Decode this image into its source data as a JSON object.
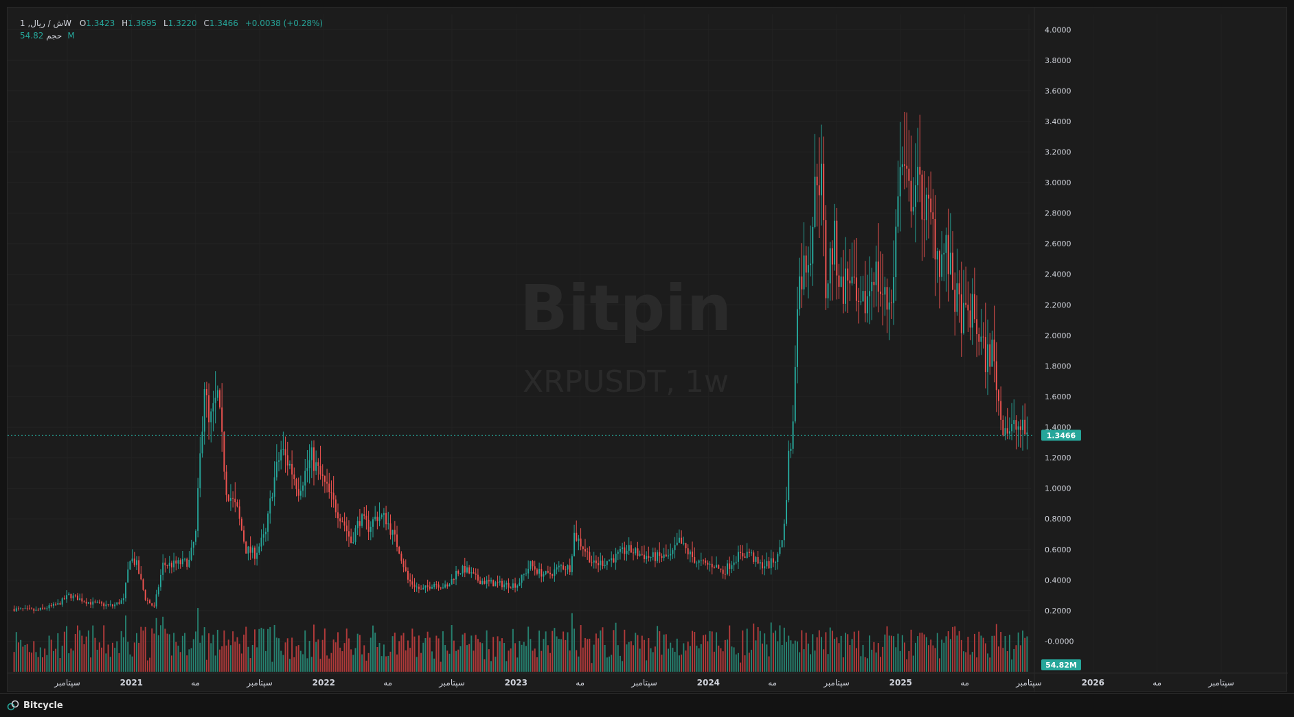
{
  "legend": {
    "symbol": "1 ,ش / ریالW",
    "open_label": "O",
    "open": "1.3423",
    "high_label": "H",
    "high": "1.3695",
    "low_label": "L",
    "low": "1.3220",
    "close_label": "C",
    "close": "1.3466",
    "change": "+0.0038 (+0.28%)",
    "volume_label": "حجم",
    "volume": "54.82M"
  },
  "watermark": {
    "brand": "Bitpin",
    "symbol": "XRPUSDT, 1w"
  },
  "footer": {
    "brand": "Bitcycle"
  },
  "colors": {
    "up": "#26a69a",
    "down": "#ef5350",
    "up_vol": "#26806f",
    "down_vol": "#b03a3a"
  },
  "chart_data": {
    "type": "candlestick",
    "interval": "1w",
    "price_axis": {
      "min": -0.2,
      "max": 4.1,
      "ticks": [
        "4.0000",
        "3.8000",
        "3.6000",
        "3.4000",
        "3.2000",
        "3.0000",
        "2.8000",
        "2.6000",
        "2.4000",
        "2.2000",
        "2.0000",
        "1.8000",
        "1.6000",
        "1.4000",
        "1.2000",
        "1.0000",
        "0.8000",
        "0.6000",
        "0.4000",
        "0.2000",
        "-0.0000"
      ]
    },
    "last_price": "1.3466",
    "last_volume": "54.82M",
    "time_axis": [
      "سپتامبر",
      "2021",
      "مه",
      "سپتامبر",
      "2022",
      "مه",
      "سپتامبر",
      "2023",
      "مه",
      "سپتامبر",
      "2024",
      "مه",
      "سپتامبر",
      "2025",
      "مه",
      "سپتامبر",
      "2026",
      "مه",
      "سپتامبر"
    ],
    "time_axis_bold": [
      "2021",
      "2022",
      "2023",
      "2024",
      "2025",
      "2026"
    ],
    "close_anchors": [
      [
        0,
        0.21
      ],
      [
        10,
        0.2
      ],
      [
        20,
        0.24
      ],
      [
        25,
        0.3
      ],
      [
        35,
        0.25
      ],
      [
        45,
        0.23
      ],
      [
        50,
        0.27
      ],
      [
        53,
        0.55
      ],
      [
        56,
        0.5
      ],
      [
        60,
        0.28
      ],
      [
        64,
        0.22
      ],
      [
        68,
        0.5
      ],
      [
        72,
        0.5
      ],
      [
        80,
        0.52
      ],
      [
        83,
        0.7
      ],
      [
        87,
        1.7
      ],
      [
        89,
        1.4
      ],
      [
        93,
        1.6
      ],
      [
        97,
        1.0
      ],
      [
        102,
        0.85
      ],
      [
        106,
        0.6
      ],
      [
        110,
        0.57
      ],
      [
        115,
        0.7
      ],
      [
        118,
        1.0
      ],
      [
        122,
        1.25
      ],
      [
        126,
        1.15
      ],
      [
        130,
        1.0
      ],
      [
        133,
        1.1
      ],
      [
        136,
        1.2
      ],
      [
        141,
        1.05
      ],
      [
        146,
        0.9
      ],
      [
        150,
        0.8
      ],
      [
        154,
        0.65
      ],
      [
        158,
        0.8
      ],
      [
        162,
        0.75
      ],
      [
        166,
        0.82
      ],
      [
        170,
        0.8
      ],
      [
        176,
        0.6
      ],
      [
        180,
        0.4
      ],
      [
        186,
        0.33
      ],
      [
        192,
        0.38
      ],
      [
        198,
        0.35
      ],
      [
        202,
        0.45
      ],
      [
        206,
        0.47
      ],
      [
        212,
        0.4
      ],
      [
        218,
        0.38
      ],
      [
        224,
        0.37
      ],
      [
        230,
        0.37
      ],
      [
        236,
        0.5
      ],
      [
        240,
        0.45
      ],
      [
        244,
        0.43
      ],
      [
        250,
        0.49
      ],
      [
        254,
        0.48
      ],
      [
        256,
        0.7
      ],
      [
        260,
        0.62
      ],
      [
        265,
        0.5
      ],
      [
        270,
        0.52
      ],
      [
        275,
        0.55
      ],
      [
        280,
        0.6
      ],
      [
        284,
        0.58
      ],
      [
        290,
        0.55
      ],
      [
        294,
        0.55
      ],
      [
        300,
        0.55
      ],
      [
        304,
        0.65
      ],
      [
        308,
        0.58
      ],
      [
        312,
        0.52
      ],
      [
        316,
        0.5
      ],
      [
        320,
        0.5
      ],
      [
        324,
        0.45
      ],
      [
        330,
        0.55
      ],
      [
        336,
        0.58
      ],
      [
        340,
        0.5
      ],
      [
        345,
        0.5
      ],
      [
        349,
        0.55
      ],
      [
        352,
        0.75
      ],
      [
        354,
        1.2
      ],
      [
        356,
        1.4
      ],
      [
        358,
        2.3
      ],
      [
        360,
        2.4
      ],
      [
        364,
        2.6
      ],
      [
        367,
        3.1
      ],
      [
        369,
        3.0
      ],
      [
        371,
        2.3
      ],
      [
        373,
        2.5
      ],
      [
        375,
        2.6
      ],
      [
        378,
        2.3
      ],
      [
        382,
        2.4
      ],
      [
        386,
        2.1
      ],
      [
        390,
        2.25
      ],
      [
        393,
        2.45
      ],
      [
        396,
        2.3
      ],
      [
        399,
        2.2
      ],
      [
        402,
        2.35
      ],
      [
        404,
        3.0
      ],
      [
        406,
        3.1
      ],
      [
        409,
        2.9
      ],
      [
        412,
        3.0
      ],
      [
        416,
        2.85
      ],
      [
        420,
        2.7
      ],
      [
        423,
        2.5
      ],
      [
        426,
        2.55
      ],
      [
        430,
        2.25
      ],
      [
        434,
        2.1
      ],
      [
        438,
        2.15
      ],
      [
        441,
        2.0
      ],
      [
        444,
        1.85
      ],
      [
        447,
        1.9
      ],
      [
        449,
        1.7
      ],
      [
        451,
        1.45
      ],
      [
        455,
        1.38
      ],
      [
        459,
        1.4
      ],
      [
        463,
        1.35
      ]
    ],
    "volume_scale_max": 100
  }
}
